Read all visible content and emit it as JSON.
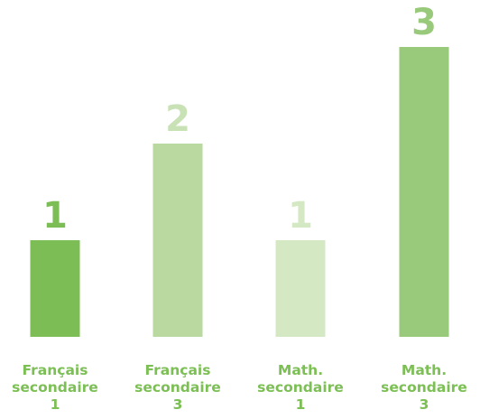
{
  "chart_data": {
    "type": "bar",
    "categories": [
      [
        "Français",
        "secondaire",
        "1"
      ],
      [
        "Français",
        "secondaire",
        "3"
      ],
      [
        "Math.",
        "secondaire",
        "1"
      ],
      [
        "Math.",
        "secondaire",
        "3"
      ]
    ],
    "values": [
      1,
      2,
      1,
      3
    ],
    "data_labels": [
      "1",
      "2",
      "1",
      "3"
    ],
    "bar_colors": [
      "#7dbd56",
      "#b9d9a0",
      "#d4e8c4",
      "#99c97a"
    ],
    "label_colors": [
      "#7dbd56",
      "#c9e2b5",
      "#d4e8c4",
      "#99c97a"
    ],
    "category_label_color": "#7cbf55",
    "ylim": [
      0,
      3
    ],
    "grid": false,
    "legend": "none"
  }
}
